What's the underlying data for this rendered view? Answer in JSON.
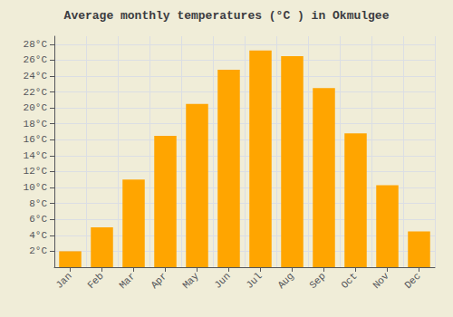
{
  "chart_data": {
    "type": "bar",
    "title": "Average monthly temperatures (°C ) in Okmulgee",
    "categories": [
      "Jan",
      "Feb",
      "Mar",
      "Apr",
      "May",
      "Jun",
      "Jul",
      "Aug",
      "Sep",
      "Oct",
      "Nov",
      "Dec"
    ],
    "values": [
      2.0,
      5.0,
      11.0,
      16.5,
      20.5,
      24.8,
      27.2,
      26.5,
      22.5,
      16.8,
      10.3,
      4.5
    ],
    "color": "#FFA500",
    "ylim": [
      0,
      29
    ],
    "yticks": [
      {
        "value": 2,
        "label": "2°C"
      },
      {
        "value": 4,
        "label": "4°C"
      },
      {
        "value": 6,
        "label": "6°C"
      },
      {
        "value": 8,
        "label": "8°C"
      },
      {
        "value": 10,
        "label": "10°C"
      },
      {
        "value": 12,
        "label": "12°C"
      },
      {
        "value": 14,
        "label": "14°C"
      },
      {
        "value": 16,
        "label": "16°C"
      },
      {
        "value": 18,
        "label": "18°C"
      },
      {
        "value": 20,
        "label": "20°C"
      },
      {
        "value": 22,
        "label": "22°C"
      },
      {
        "value": 24,
        "label": "24°C"
      },
      {
        "value": 26,
        "label": "26°C"
      },
      {
        "value": 28,
        "label": "28°C"
      }
    ],
    "grid": true
  }
}
